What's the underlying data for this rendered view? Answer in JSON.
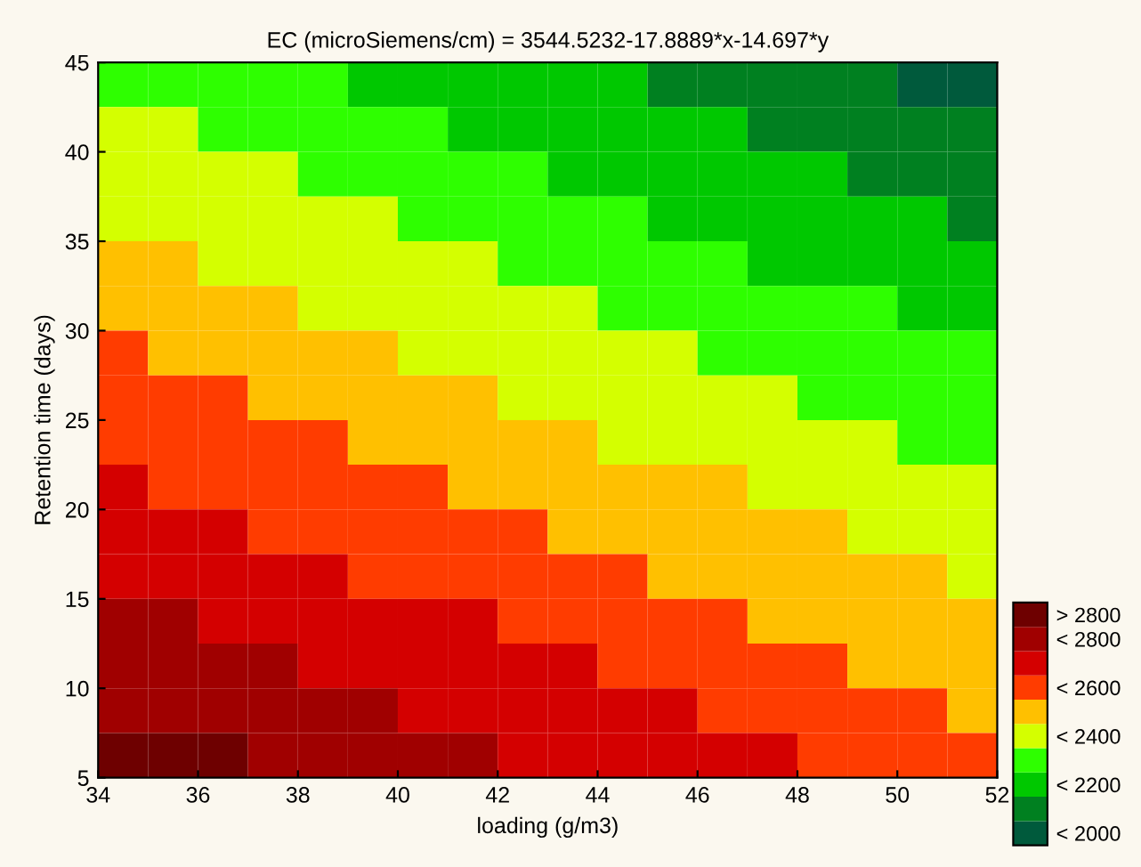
{
  "chart_data": {
    "type": "heatmap",
    "title": "EC (microSiemens/cm) = 3544.5232-17.8889*x-14.697*y",
    "xlabel": "loading (g/m3)",
    "ylabel": "Retention time (days)",
    "xlim": [
      34,
      52
    ],
    "xticks": [
      34,
      36,
      38,
      40,
      42,
      44,
      46,
      48,
      50,
      52
    ],
    "ylim": [
      5,
      45
    ],
    "yticks": [
      5,
      10,
      15,
      20,
      25,
      30,
      35,
      40,
      45
    ],
    "clim": [
      1900,
      2900
    ],
    "colors": [
      "#005a3c",
      "#008020",
      "#00c800",
      "#2eff00",
      "#d4ff00",
      "#ffc000",
      "#ff3c00",
      "#d40000",
      "#a00000",
      "#6e0000"
    ],
    "cticks": [
      {
        "value": 1950,
        "label": "< 2000"
      },
      {
        "value": 2150,
        "label": "< 2200"
      },
      {
        "value": 2350,
        "label": "< 2400"
      },
      {
        "value": 2550,
        "label": "< 2600"
      },
      {
        "value": 2750,
        "label": "< 2800"
      },
      {
        "value": 2850,
        "label": "> 2800"
      }
    ],
    "cells": [
      [
        2284,
        2266,
        2249,
        2231,
        2213,
        2195,
        2177,
        2159,
        2141,
        2123,
        2105,
        2088,
        2070,
        2052,
        2034,
        2016,
        1998,
        1980
      ],
      [
        2321,
        2303,
        2285,
        2267,
        2250,
        2232,
        2214,
        2196,
        2178,
        2160,
        2142,
        2124,
        2106,
        2089,
        2071,
        2053,
        2035,
        2017
      ],
      [
        2358,
        2340,
        2322,
        2304,
        2286,
        2268,
        2251,
        2233,
        2215,
        2197,
        2179,
        2161,
        2143,
        2125,
        2107,
        2090,
        2072,
        2054
      ],
      [
        2395,
        2377,
        2359,
        2341,
        2323,
        2305,
        2287,
        2269,
        2251,
        2234,
        2216,
        2198,
        2180,
        2162,
        2144,
        2126,
        2108,
        2090
      ],
      [
        2431,
        2413,
        2396,
        2378,
        2360,
        2342,
        2324,
        2306,
        2288,
        2270,
        2252,
        2235,
        2217,
        2199,
        2181,
        2163,
        2145,
        2127
      ],
      [
        2468,
        2450,
        2432,
        2414,
        2397,
        2379,
        2361,
        2343,
        2325,
        2307,
        2289,
        2271,
        2253,
        2236,
        2218,
        2200,
        2182,
        2164
      ],
      [
        2505,
        2487,
        2469,
        2451,
        2433,
        2415,
        2398,
        2380,
        2362,
        2344,
        2326,
        2308,
        2290,
        2272,
        2254,
        2237,
        2219,
        2201
      ],
      [
        2542,
        2524,
        2506,
        2488,
        2470,
        2452,
        2434,
        2416,
        2398,
        2381,
        2363,
        2345,
        2327,
        2309,
        2291,
        2273,
        2255,
        2237
      ],
      [
        2578,
        2560,
        2543,
        2525,
        2507,
        2489,
        2471,
        2453,
        2435,
        2417,
        2399,
        2382,
        2364,
        2346,
        2328,
        2310,
        2292,
        2274
      ],
      [
        2615,
        2597,
        2579,
        2561,
        2543,
        2526,
        2508,
        2490,
        2472,
        2454,
        2436,
        2418,
        2400,
        2382,
        2365,
        2347,
        2329,
        2311
      ],
      [
        2652,
        2634,
        2616,
        2598,
        2580,
        2562,
        2544,
        2527,
        2509,
        2491,
        2473,
        2455,
        2437,
        2419,
        2401,
        2383,
        2366,
        2348
      ],
      [
        2689,
        2671,
        2653,
        2635,
        2617,
        2599,
        2581,
        2563,
        2545,
        2528,
        2510,
        2492,
        2474,
        2456,
        2438,
        2420,
        2402,
        2384
      ],
      [
        2725,
        2707,
        2690,
        2672,
        2654,
        2636,
        2618,
        2600,
        2582,
        2564,
        2546,
        2529,
        2511,
        2493,
        2475,
        2457,
        2439,
        2421
      ],
      [
        2762,
        2744,
        2726,
        2708,
        2690,
        2673,
        2655,
        2637,
        2619,
        2601,
        2583,
        2565,
        2547,
        2529,
        2512,
        2494,
        2476,
        2458
      ],
      [
        2799,
        2781,
        2763,
        2745,
        2727,
        2709,
        2691,
        2674,
        2656,
        2638,
        2620,
        2602,
        2584,
        2566,
        2548,
        2530,
        2513,
        2495
      ],
      [
        2836,
        2818,
        2800,
        2782,
        2764,
        2746,
        2728,
        2710,
        2692,
        2675,
        2657,
        2639,
        2621,
        2603,
        2585,
        2567,
        2549,
        2531
      ]
    ]
  }
}
